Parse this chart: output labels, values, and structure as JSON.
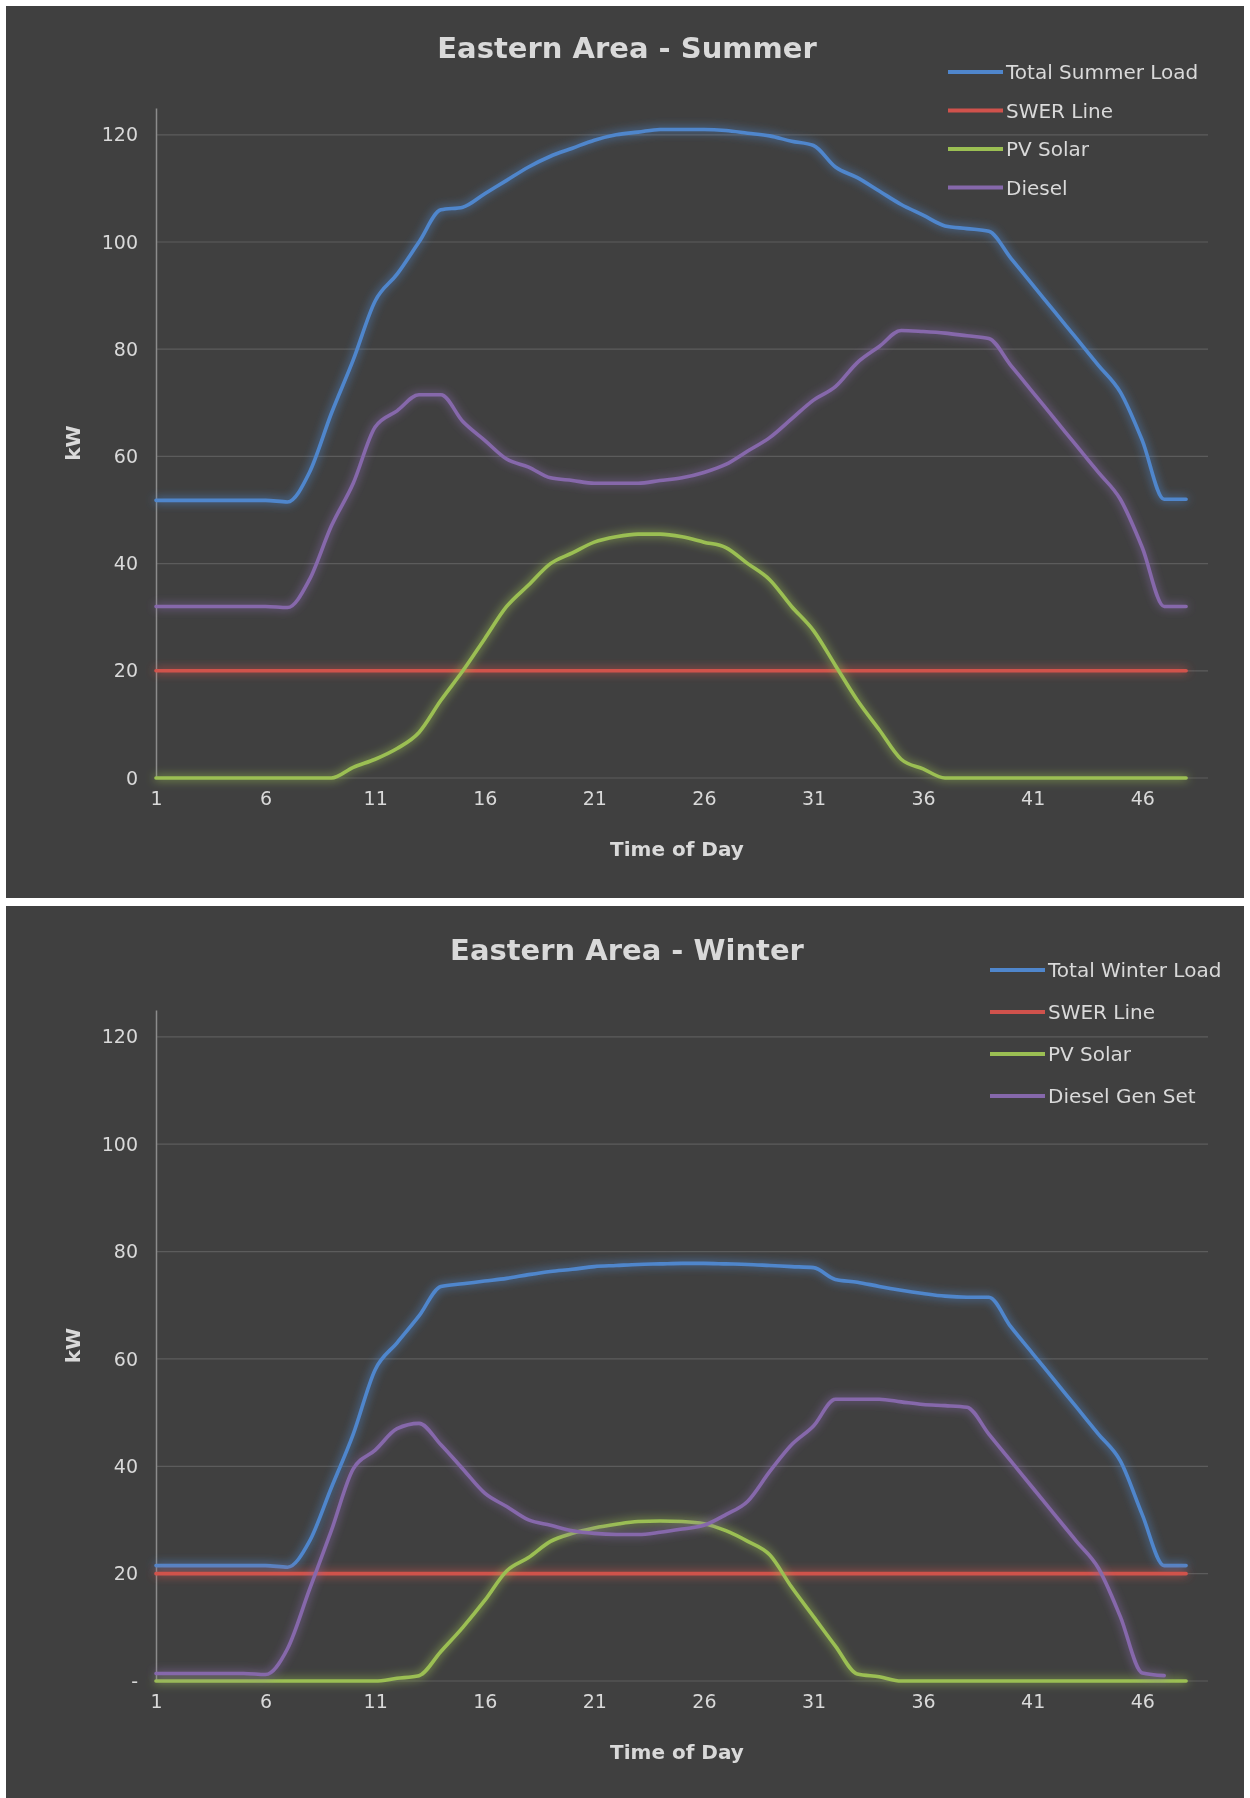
{
  "chart_data": [
    {
      "type": "line",
      "title": "Eastern Area - Summer",
      "xlabel": "Time of Day",
      "ylabel": "kW",
      "xlim": [
        1,
        49
      ],
      "xticks": [
        1,
        6,
        11,
        16,
        21,
        26,
        31,
        36,
        41,
        46
      ],
      "ylim": [
        0,
        125
      ],
      "yticks": [
        0,
        20,
        40,
        60,
        80,
        100,
        120
      ],
      "grid": "y",
      "legend": "top right",
      "line_style": "solid",
      "x": [
        1,
        2,
        3,
        4,
        5,
        6,
        7,
        8,
        9,
        10,
        11,
        12,
        13,
        14,
        15,
        16,
        17,
        18,
        19,
        20,
        21,
        22,
        23,
        24,
        25,
        26,
        27,
        28,
        29,
        30,
        31,
        32,
        33,
        34,
        35,
        36,
        37,
        38,
        39,
        40,
        41,
        42,
        43,
        44,
        45,
        46,
        47,
        48
      ],
      "series": [
        {
          "name": "Total Summer Load",
          "color": "#4f86cc",
          "values": [
            51.8,
            51.8,
            51.8,
            51.8,
            51.8,
            51.8,
            51.5,
            57,
            68,
            78,
            89,
            94,
            100,
            106,
            106.5,
            109,
            111.5,
            114,
            116,
            117.5,
            119,
            120,
            120.5,
            121,
            121,
            121,
            120.8,
            120.3,
            119.8,
            118.8,
            118,
            114,
            112,
            109.5,
            107,
            105,
            103,
            102.5,
            102,
            97,
            92,
            87,
            82,
            77,
            72,
            63,
            52,
            52
          ]
        },
        {
          "name": "SWER Line",
          "color": "#d0524c",
          "values": [
            20,
            20,
            20,
            20,
            20,
            20,
            20,
            20,
            20,
            20,
            20,
            20,
            20,
            20,
            20,
            20,
            20,
            20,
            20,
            20,
            20,
            20,
            20,
            20,
            20,
            20,
            20,
            20,
            20,
            20,
            20,
            20,
            20,
            20,
            20,
            20,
            20,
            20,
            20,
            20,
            20,
            20,
            20,
            20,
            20,
            20,
            20,
            20
          ]
        },
        {
          "name": "PV Solar",
          "color": "#9bbf53",
          "values": [
            0,
            0,
            0,
            0,
            0,
            0,
            0,
            0,
            0,
            2,
            3.5,
            5.5,
            8.5,
            14.5,
            20,
            26,
            32,
            36,
            40,
            42,
            44,
            45,
            45.5,
            45.5,
            45,
            44,
            43,
            40,
            37,
            32,
            27.5,
            21,
            14.5,
            9,
            3.5,
            1.7,
            0,
            0,
            0,
            0,
            0,
            0,
            0,
            0,
            0,
            0,
            0,
            0
          ]
        },
        {
          "name": "Diesel",
          "color": "#8668ab",
          "values": [
            32,
            32,
            32,
            32,
            32,
            32,
            31.8,
            37,
            47,
            55,
            65.5,
            68.5,
            71.5,
            71.5,
            66.5,
            63,
            59.5,
            58,
            56,
            55.5,
            55,
            55,
            55,
            55.5,
            56,
            57,
            58.5,
            61,
            63.5,
            67,
            70.5,
            73,
            77.5,
            80.5,
            83.5,
            83.3,
            83,
            82.5,
            82,
            77,
            72,
            67,
            62,
            57,
            52,
            43,
            32,
            32
          ]
        }
      ]
    },
    {
      "type": "line",
      "title": "Eastern Area - Winter",
      "xlabel": "Time of Day",
      "ylabel": "kW",
      "xlim": [
        1,
        49
      ],
      "xticks": [
        1,
        6,
        11,
        16,
        21,
        26,
        31,
        36,
        41,
        46
      ],
      "ylim": [
        0,
        125
      ],
      "yticks": [
        {
          "value": 0,
          "label": "-"
        },
        20,
        40,
        60,
        80,
        100,
        120
      ],
      "grid": "y",
      "legend": "top right",
      "line_style": "solid",
      "x": [
        1,
        2,
        3,
        4,
        5,
        6,
        7,
        8,
        9,
        10,
        11,
        12,
        13,
        14,
        15,
        16,
        17,
        18,
        19,
        20,
        21,
        22,
        23,
        24,
        25,
        26,
        27,
        28,
        29,
        30,
        31,
        32,
        33,
        34,
        35,
        36,
        37,
        38,
        39,
        40,
        41,
        42,
        43,
        44,
        45,
        46,
        47,
        48
      ],
      "series": [
        {
          "name": "Total Winter Load",
          "color": "#4f86cc",
          "values": [
            21.5,
            21.5,
            21.5,
            21.5,
            21.5,
            21.5,
            21.2,
            26,
            36,
            46,
            58,
            63,
            68,
            73.5,
            74,
            74.5,
            75,
            75.7,
            76.3,
            76.7,
            77.2,
            77.4,
            77.6,
            77.7,
            77.8,
            77.8,
            77.7,
            77.6,
            77.4,
            77.2,
            77,
            74.8,
            74.3,
            73.5,
            72.8,
            72.2,
            71.7,
            71.5,
            71.5,
            66,
            61,
            56,
            51,
            46,
            41,
            31,
            21.5,
            21.5
          ]
        },
        {
          "name": "SWER Line",
          "color": "#d0524c",
          "values": [
            20,
            20,
            20,
            20,
            20,
            20,
            20,
            20,
            20,
            20,
            20,
            20,
            20,
            20,
            20,
            20,
            20,
            20,
            20,
            20,
            20,
            20,
            20,
            20,
            20,
            20,
            20,
            20,
            20,
            20,
            20,
            20,
            20,
            20,
            20,
            20,
            20,
            20,
            20,
            20,
            20,
            20,
            20,
            20,
            20,
            20,
            20,
            20
          ]
        },
        {
          "name": "PV Solar",
          "color": "#9bbf53",
          "values": [
            0,
            0,
            0,
            0,
            0,
            0,
            0,
            0,
            0,
            0,
            0,
            0.5,
            1,
            5.5,
            10,
            15,
            20.5,
            23,
            26,
            27.5,
            28.5,
            29.2,
            29.7,
            29.8,
            29.7,
            29.3,
            28,
            26,
            23.5,
            17.5,
            12,
            6.5,
            1.3,
            0.8,
            0,
            0,
            0,
            0,
            0,
            0,
            0,
            0,
            0,
            0,
            0,
            0,
            0,
            0
          ]
        },
        {
          "name": "Diesel Gen Set",
          "color": "#8668ab",
          "values": [
            1.4,
            1.4,
            1.4,
            1.4,
            1.4,
            1.2,
            6,
            17,
            28,
            39.5,
            43,
            47,
            48,
            44,
            39.5,
            35,
            32.5,
            30,
            29,
            28,
            27.5,
            27.3,
            27.3,
            27.7,
            28.3,
            29,
            31,
            33.5,
            39,
            44,
            47.5,
            52.5,
            52.5,
            52.5,
            52,
            51.5,
            51.3,
            51,
            46,
            41,
            36,
            31,
            26,
            21,
            12,
            1.5,
            1,
            null
          ]
        }
      ]
    }
  ]
}
